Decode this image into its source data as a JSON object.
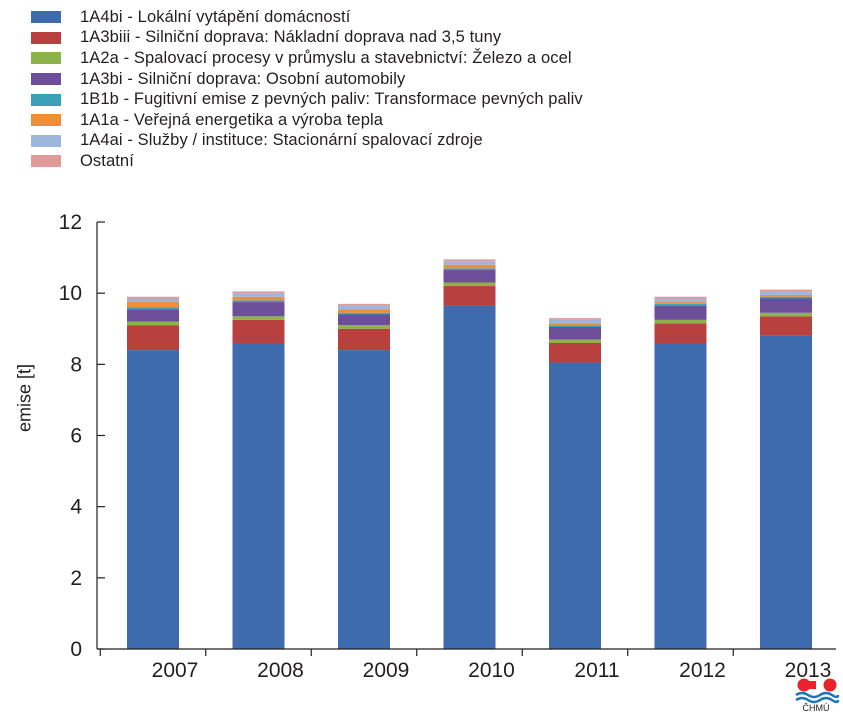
{
  "chart_data": {
    "type": "bar",
    "stacked": true,
    "title": "",
    "xlabel": "",
    "ylabel": "emise [t]",
    "ylim": [
      0,
      12
    ],
    "yticks": [
      0,
      2,
      4,
      6,
      8,
      10,
      12
    ],
    "grid": false,
    "legend_position": "top-left",
    "categories": [
      "2007",
      "2008",
      "2009",
      "2010",
      "2011",
      "2012",
      "2013"
    ],
    "series": [
      {
        "name": "1A4bi - Lokální vytápění domácností",
        "color": "#3d6bad",
        "values": [
          8.4,
          8.6,
          8.4,
          9.65,
          8.05,
          8.6,
          8.8
        ]
      },
      {
        "name": "1A3biii - Silniční doprava: Nákladní doprava nad 3,5 tuny",
        "color": "#b8403f",
        "values": [
          0.7,
          0.65,
          0.6,
          0.55,
          0.55,
          0.55,
          0.55
        ]
      },
      {
        "name": "1A2a - Spalovací procesy v průmyslu a stavebnictví: Železo a ocel",
        "color": "#8cb24a",
        "values": [
          0.1,
          0.1,
          0.1,
          0.1,
          0.1,
          0.1,
          0.1
        ]
      },
      {
        "name": "1A3bi - Silniční doprava: Osobní automobily",
        "color": "#6c4f98",
        "values": [
          0.35,
          0.4,
          0.3,
          0.35,
          0.35,
          0.4,
          0.4
        ]
      },
      {
        "name": "1B1b - Fugitivní emise z pevných paliv: Transformace pevných paliv",
        "color": "#3aa0b8",
        "values": [
          0.05,
          0.05,
          0.05,
          0.05,
          0.05,
          0.05,
          0.05
        ]
      },
      {
        "name": "1A1a - Veřejná energetika a výroba tepla",
        "color": "#f08e35",
        "values": [
          0.15,
          0.1,
          0.1,
          0.1,
          0.05,
          0.05,
          0.05
        ]
      },
      {
        "name": "1A4ai - Služby / instituce: Stacionární spalovací zdroje",
        "color": "#9cb6dc",
        "values": [
          0.1,
          0.1,
          0.1,
          0.1,
          0.1,
          0.1,
          0.1
        ]
      },
      {
        "name": "Ostatní",
        "color": "#e09a9a",
        "values": [
          0.05,
          0.05,
          0.05,
          0.05,
          0.05,
          0.05,
          0.05
        ]
      }
    ]
  },
  "logo": {
    "text": "ČHMÚ",
    "colors": [
      "#e8232a",
      "#1e73be"
    ]
  }
}
